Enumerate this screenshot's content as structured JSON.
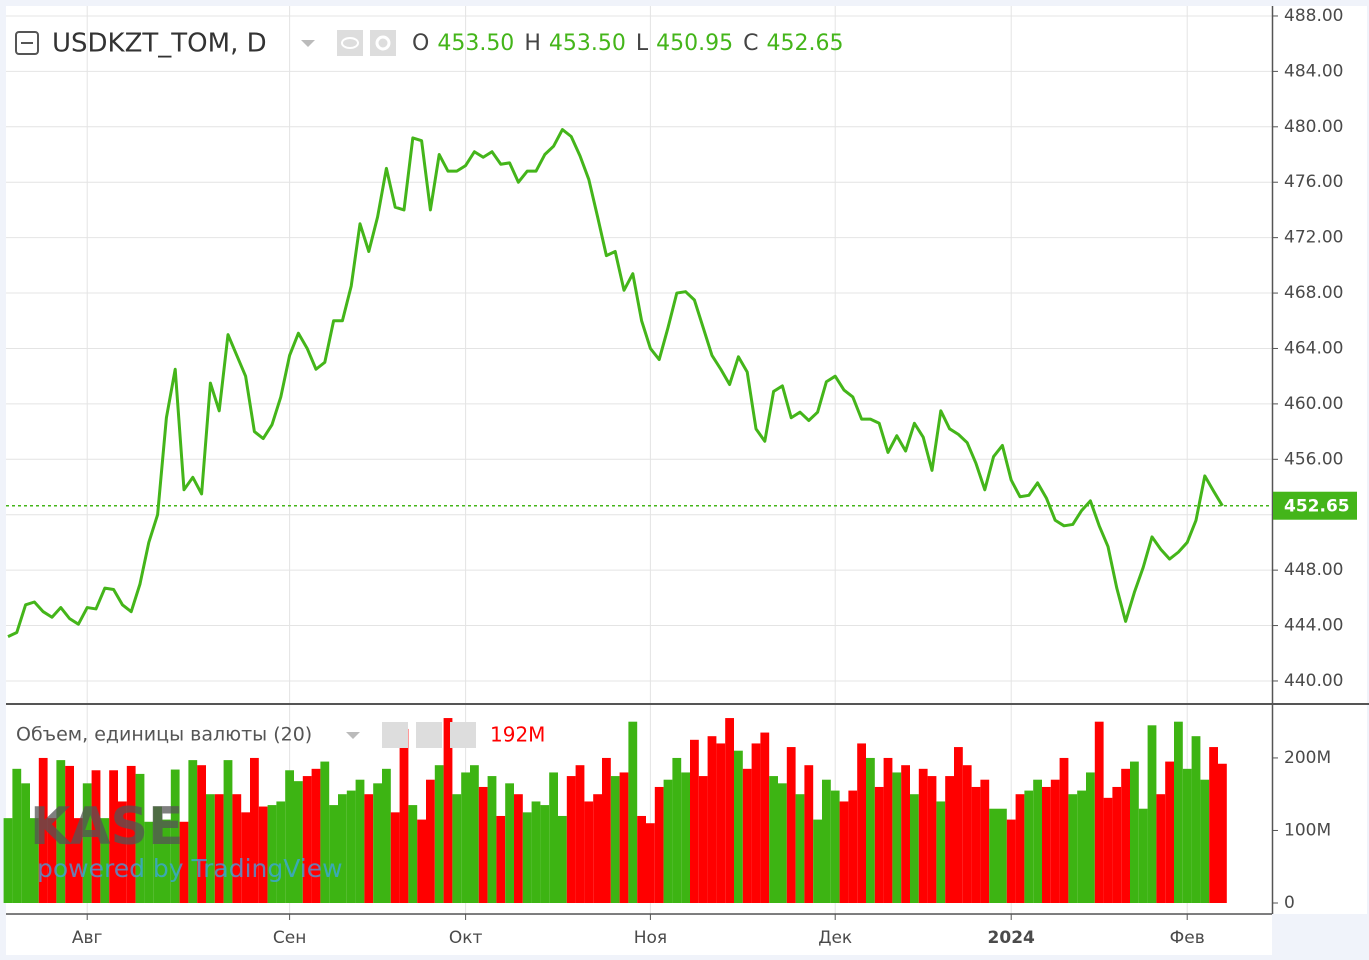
{
  "chart_data": [
    {
      "type": "line",
      "title": "USDKZT_TOM, D",
      "ohlc": [
        {
          "name": "O",
          "value": 453.5,
          "label": "453.50"
        },
        {
          "name": "H",
          "value": 453.5,
          "label": "453.50"
        },
        {
          "name": "L",
          "value": 450.95,
          "label": "450.95"
        },
        {
          "name": "C",
          "value": 452.65,
          "label": "452.65"
        }
      ],
      "categories": [
        null,
        null,
        null,
        null,
        null,
        null,
        null,
        null,
        null,
        "Авг",
        null,
        null,
        null,
        null,
        null,
        null,
        null,
        null,
        null,
        null,
        null,
        null,
        null,
        null,
        null,
        null,
        null,
        null,
        null,
        null,
        null,
        null,
        "Сен",
        null,
        null,
        null,
        null,
        null,
        null,
        null,
        null,
        null,
        null,
        null,
        null,
        null,
        null,
        null,
        null,
        null,
        null,
        null,
        "Окт",
        null,
        null,
        null,
        null,
        null,
        null,
        null,
        null,
        null,
        null,
        null,
        null,
        null,
        null,
        null,
        null,
        null,
        null,
        null,
        null,
        "Ноя",
        null,
        null,
        null,
        null,
        null,
        null,
        null,
        null,
        null,
        null,
        null,
        null,
        null,
        null,
        null,
        null,
        null,
        null,
        null,
        null,
        "Дек",
        null,
        null,
        null,
        null,
        null,
        null,
        null,
        null,
        null,
        null,
        null,
        null,
        null,
        null,
        null,
        null,
        null,
        null,
        null,
        "2024",
        null,
        null,
        null,
        null,
        null,
        null,
        null,
        null,
        null,
        null,
        null,
        null,
        null,
        null,
        null,
        null,
        null,
        null,
        null,
        "Фев",
        null,
        null,
        null,
        null
      ],
      "values": [
        443.2,
        443.5,
        445.5,
        445.7,
        445.0,
        444.6,
        445.3,
        444.5,
        444.1,
        445.3,
        445.2,
        446.7,
        446.6,
        445.5,
        445.0,
        447.0,
        450.0,
        452.0,
        459.0,
        462.5,
        453.8,
        454.7,
        453.5,
        461.5,
        459.5,
        465.0,
        463.5,
        462.0,
        458.0,
        457.5,
        458.5,
        460.5,
        463.5,
        465.1,
        464.0,
        462.5,
        463.0,
        466.0,
        466.0,
        468.5,
        473.0,
        471.0,
        473.5,
        477.0,
        474.2,
        474.0,
        479.2,
        479.0,
        474.0,
        478.0,
        476.8,
        476.8,
        477.2,
        478.2,
        477.8,
        478.2,
        477.3,
        477.4,
        476.0,
        476.8,
        476.8,
        478.0,
        478.6,
        479.8,
        479.3,
        477.9,
        476.2,
        473.5,
        470.7,
        471.0,
        468.2,
        469.4,
        466.0,
        464.0,
        463.2,
        465.5,
        468.0,
        468.1,
        467.5,
        465.5,
        463.5,
        462.5,
        461.4,
        463.4,
        462.3,
        458.2,
        457.3,
        460.9,
        461.3,
        459.0,
        459.4,
        458.8,
        459.4,
        461.6,
        462.0,
        461.0,
        460.5,
        458.9,
        458.9,
        458.6,
        456.5,
        457.7,
        456.6,
        458.6,
        457.6,
        455.2,
        459.5,
        458.2,
        457.8,
        457.2,
        455.7,
        453.8,
        456.2,
        457.0,
        454.5,
        453.3,
        453.4,
        454.3,
        453.2,
        451.6,
        451.2,
        451.3,
        452.3,
        453.0,
        451.2,
        449.7,
        446.7,
        444.3,
        446.4,
        448.2,
        450.4,
        449.5,
        448.8,
        449.3,
        450.0,
        451.6,
        454.8,
        453.7,
        452.65
      ],
      "color": "#44b51a",
      "ylim": [
        438.41,
        488.72
      ],
      "yticks": [
        {
          "value": 440,
          "label": "440.00"
        },
        {
          "value": 444,
          "label": "444.00"
        },
        {
          "value": 448,
          "label": "448.00"
        },
        {
          "value": 452,
          "label": "452.00"
        },
        {
          "value": 456,
          "label": "456.00"
        },
        {
          "value": 460,
          "label": "460.00"
        },
        {
          "value": 464,
          "label": "464.00"
        },
        {
          "value": 468,
          "label": "468.00"
        },
        {
          "value": 472,
          "label": "472.00"
        },
        {
          "value": 476,
          "label": "476.00"
        },
        {
          "value": 480,
          "label": "480.00"
        },
        {
          "value": 484,
          "label": "484.00"
        },
        {
          "value": 488,
          "label": "488.00"
        }
      ],
      "last_price": {
        "value": 452.65,
        "label": "452.65"
      },
      "grid": true
    },
    {
      "type": "bar",
      "title": "Объем, единицы валюты (20)",
      "last_value": {
        "value": 192,
        "label": "192M"
      },
      "values": [
        117,
        185,
        165,
        117,
        200,
        117,
        197,
        189,
        117,
        165,
        183,
        117,
        183,
        140,
        189,
        178,
        112,
        133,
        115,
        184,
        112,
        197,
        190,
        150,
        150,
        197,
        150,
        125,
        200,
        133,
        135,
        140,
        183,
        168,
        175,
        185,
        195,
        135,
        150,
        155,
        170,
        150,
        165,
        185,
        125,
        240,
        135,
        115,
        170,
        190,
        255,
        150,
        180,
        190,
        160,
        175,
        120,
        165,
        150,
        125,
        140,
        135,
        180,
        120,
        175,
        190,
        140,
        150,
        200,
        175,
        180,
        250,
        120,
        110,
        160,
        170,
        200,
        180,
        225,
        175,
        230,
        220,
        255,
        210,
        185,
        220,
        235,
        175,
        165,
        215,
        150,
        190,
        115,
        170,
        155,
        140,
        155,
        220,
        200,
        160,
        200,
        180,
        190,
        150,
        185,
        175,
        140,
        175,
        215,
        190,
        160,
        170,
        130,
        130,
        115,
        150,
        155,
        170,
        160,
        170,
        200,
        150,
        155,
        180,
        250,
        145,
        160,
        185,
        195,
        130,
        245,
        150,
        195,
        250,
        185,
        230,
        170,
        215,
        192
      ],
      "up_color": "#3db413",
      "down_color": "#ff0000",
      "ylim": [
        0,
        273
      ],
      "yticks": [
        0,
        {
          "value": 100,
          "label": "100M"
        },
        {
          "value": 200,
          "label": "200M"
        }
      ],
      "watermark": "KASE",
      "watermark_sub": "powered by TradingView"
    }
  ]
}
